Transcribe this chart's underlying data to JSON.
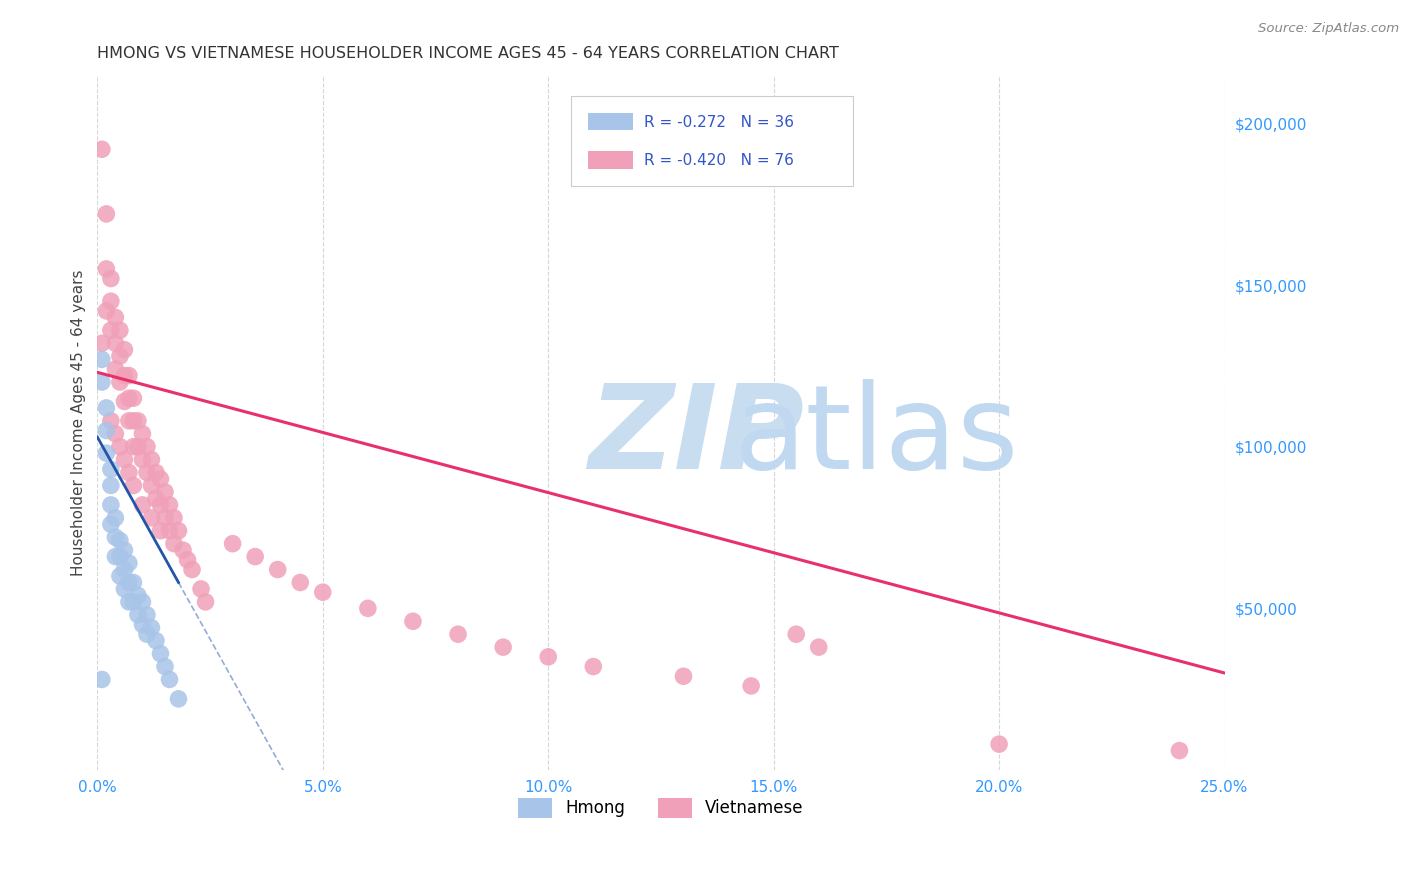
{
  "title": "HMONG VS VIETNAMESE HOUSEHOLDER INCOME AGES 45 - 64 YEARS CORRELATION CHART",
  "source": "Source: ZipAtlas.com",
  "ylabel": "Householder Income Ages 45 - 64 years",
  "xlim": [
    0.0,
    0.25
  ],
  "ylim": [
    0,
    215000
  ],
  "hmong_color": "#a8c4e8",
  "viet_color": "#f0a0b8",
  "hmong_line_color": "#2255aa",
  "viet_line_color": "#e8306a",
  "hmong_dashed_color": "#6688cc",
  "watermark_zip_color": "#c8ddf0",
  "watermark_atlas_color": "#c0d8f0",
  "legend_text_color": "#3355cc",
  "tick_color": "#3399ff",
  "title_color": "#333333",
  "ylabel_color": "#444444",
  "grid_color": "#cccccc",
  "hmong_x": [
    0.001,
    0.001,
    0.002,
    0.002,
    0.002,
    0.003,
    0.003,
    0.003,
    0.003,
    0.004,
    0.004,
    0.004,
    0.005,
    0.005,
    0.005,
    0.006,
    0.006,
    0.006,
    0.007,
    0.007,
    0.007,
    0.008,
    0.008,
    0.009,
    0.009,
    0.01,
    0.01,
    0.011,
    0.011,
    0.012,
    0.013,
    0.014,
    0.015,
    0.016,
    0.018,
    0.001
  ],
  "hmong_y": [
    127000,
    120000,
    112000,
    105000,
    98000,
    93000,
    88000,
    82000,
    76000,
    78000,
    72000,
    66000,
    71000,
    66000,
    60000,
    68000,
    62000,
    56000,
    64000,
    58000,
    52000,
    58000,
    52000,
    54000,
    48000,
    52000,
    45000,
    48000,
    42000,
    44000,
    40000,
    36000,
    32000,
    28000,
    22000,
    28000
  ],
  "viet_x": [
    0.001,
    0.001,
    0.002,
    0.002,
    0.002,
    0.003,
    0.003,
    0.003,
    0.004,
    0.004,
    0.004,
    0.005,
    0.005,
    0.005,
    0.006,
    0.006,
    0.006,
    0.007,
    0.007,
    0.007,
    0.008,
    0.008,
    0.008,
    0.009,
    0.009,
    0.01,
    0.01,
    0.011,
    0.011,
    0.012,
    0.012,
    0.013,
    0.013,
    0.014,
    0.014,
    0.015,
    0.015,
    0.016,
    0.016,
    0.017,
    0.017,
    0.018,
    0.019,
    0.02,
    0.021,
    0.023,
    0.024,
    0.003,
    0.004,
    0.005,
    0.006,
    0.007,
    0.008,
    0.01,
    0.012,
    0.014,
    0.03,
    0.035,
    0.04,
    0.045,
    0.05,
    0.06,
    0.07,
    0.08,
    0.09,
    0.1,
    0.11,
    0.13,
    0.145,
    0.155,
    0.16,
    0.2,
    0.24
  ],
  "viet_y": [
    192000,
    132000,
    172000,
    155000,
    142000,
    152000,
    145000,
    136000,
    140000,
    132000,
    124000,
    136000,
    128000,
    120000,
    130000,
    122000,
    114000,
    122000,
    115000,
    108000,
    115000,
    108000,
    100000,
    108000,
    100000,
    104000,
    96000,
    100000,
    92000,
    96000,
    88000,
    92000,
    84000,
    90000,
    82000,
    86000,
    78000,
    82000,
    74000,
    78000,
    70000,
    74000,
    68000,
    65000,
    62000,
    56000,
    52000,
    108000,
    104000,
    100000,
    96000,
    92000,
    88000,
    82000,
    78000,
    74000,
    70000,
    66000,
    62000,
    58000,
    55000,
    50000,
    46000,
    42000,
    38000,
    35000,
    32000,
    29000,
    26000,
    42000,
    38000,
    8000,
    6000
  ]
}
